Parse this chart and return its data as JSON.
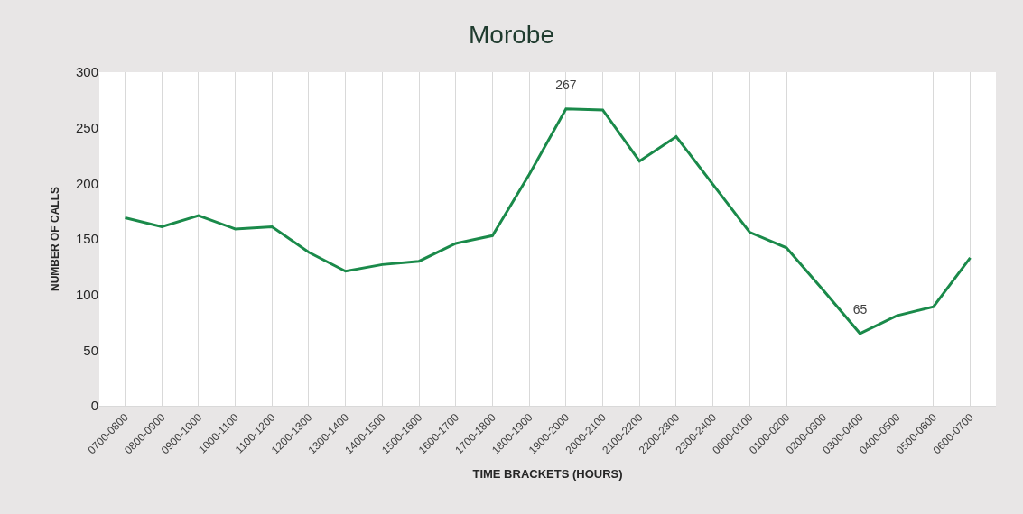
{
  "chart_data": {
    "type": "line",
    "title": "Morobe",
    "xlabel": "TIME BRACKETS (HOURS)",
    "ylabel": "NUMBER OF CALLS",
    "categories": [
      "0700-0800",
      "0800-0900",
      "0900-1000",
      "1000-1100",
      "1100-1200",
      "1200-1300",
      "1300-1400",
      "1400-1500",
      "1500-1600",
      "1600-1700",
      "1700-1800",
      "1800-1900",
      "1900-2000",
      "2000-2100",
      "2100-2200",
      "2200-2300",
      "2300-2400",
      "0000-0100",
      "0100-0200",
      "0200-0300",
      "0300-0400",
      "0400-0500",
      "0500-0600",
      "0600-0700"
    ],
    "series": [
      {
        "color": "#1a8a4a",
        "values": [
          169,
          161,
          171,
          159,
          161,
          138,
          121,
          127,
          130,
          146,
          153,
          208,
          267,
          266,
          220,
          242,
          199,
          156,
          142,
          104,
          65,
          81,
          89,
          133
        ],
        "value_labels": [
          null,
          null,
          null,
          null,
          null,
          null,
          null,
          null,
          null,
          null,
          null,
          null,
          "267",
          null,
          null,
          null,
          null,
          null,
          null,
          null,
          "65",
          null,
          null,
          null
        ]
      }
    ],
    "ylim": [
      0,
      300
    ],
    "yticks": [
      0,
      50,
      100,
      150,
      200,
      250,
      300
    ],
    "grid": "x",
    "marker": "none",
    "line_style": "solid"
  }
}
